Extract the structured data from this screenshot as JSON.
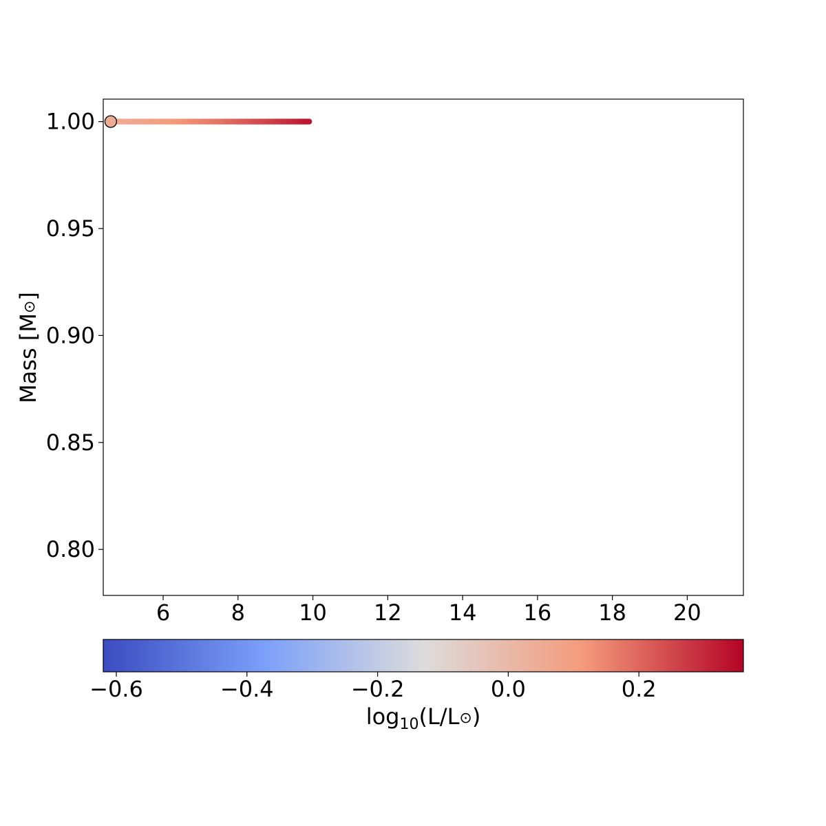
{
  "chart_data": {
    "type": "scatter",
    "title": "",
    "xlabel": "",
    "ylabel": "Mass [M",
    "ylabel_symbol": "⊙",
    "ylabel_close": "]",
    "xlim": [
      4.4,
      21.5
    ],
    "ylim": [
      0.7785,
      1.0105
    ],
    "x_ticks": [
      6,
      8,
      10,
      12,
      14,
      16,
      18,
      20
    ],
    "y_ticks": [
      0.8,
      0.85,
      0.9,
      0.95,
      1.0
    ],
    "x_tick_labels": [
      "6",
      "8",
      "10",
      "12",
      "14",
      "16",
      "18",
      "20"
    ],
    "y_tick_labels": [
      "0.80",
      "0.85",
      "0.90",
      "0.95",
      "1.00"
    ],
    "grid": false,
    "series": [
      {
        "x_start": 4.6,
        "x_end": 9.9,
        "mass": 1.0,
        "logL_start": 0.05,
        "logL_end": 0.33,
        "colormap": "coolwarm"
      }
    ],
    "start_marker": {
      "x": 4.6,
      "mass": 1.0,
      "logL": 0.05
    },
    "colorbar": {
      "label_prefix": "log",
      "label_sub": "10",
      "label_body": "(L/L",
      "label_symbol": "⊙",
      "label_close": ")",
      "range": [
        -0.62,
        0.36
      ],
      "ticks": [
        -0.6,
        -0.4,
        -0.2,
        0.0,
        0.2
      ],
      "tick_labels": [
        "−0.6",
        "−0.4",
        "−0.2",
        "0.0",
        "0.2"
      ],
      "placement": "bottom",
      "colormap": "coolwarm"
    }
  }
}
